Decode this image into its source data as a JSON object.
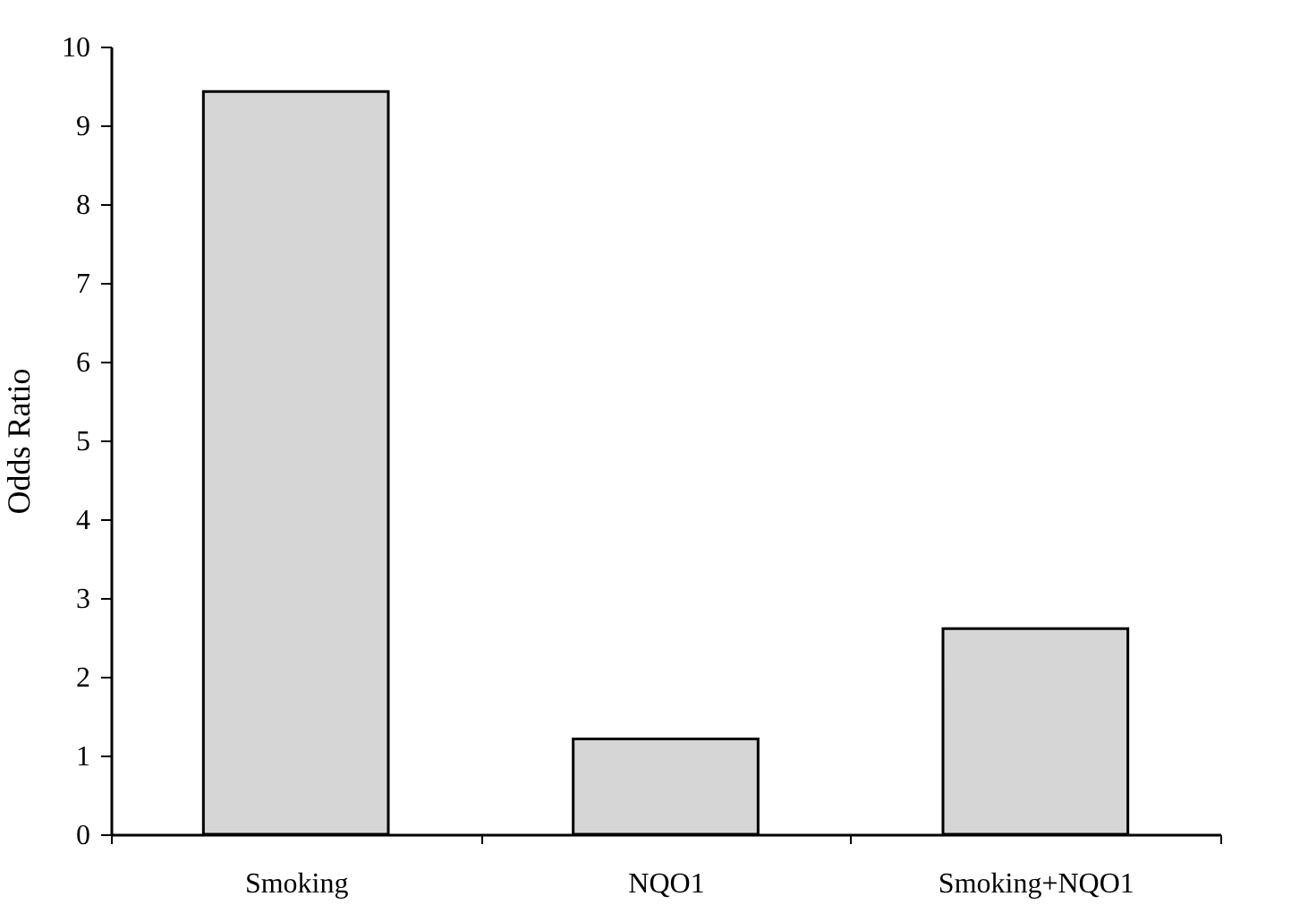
{
  "chart_data": {
    "type": "bar",
    "ylabel": "Odds Ratio",
    "categories": [
      "Smoking",
      "NQO1",
      "Smoking+NQO1"
    ],
    "values": [
      9.43,
      1.21,
      2.61
    ],
    "color": "#d6d6d6",
    "ylim": [
      0,
      10
    ],
    "yticks": [
      0,
      1,
      2,
      3,
      4,
      5,
      6,
      7,
      8,
      9,
      10
    ],
    "grid": false
  }
}
